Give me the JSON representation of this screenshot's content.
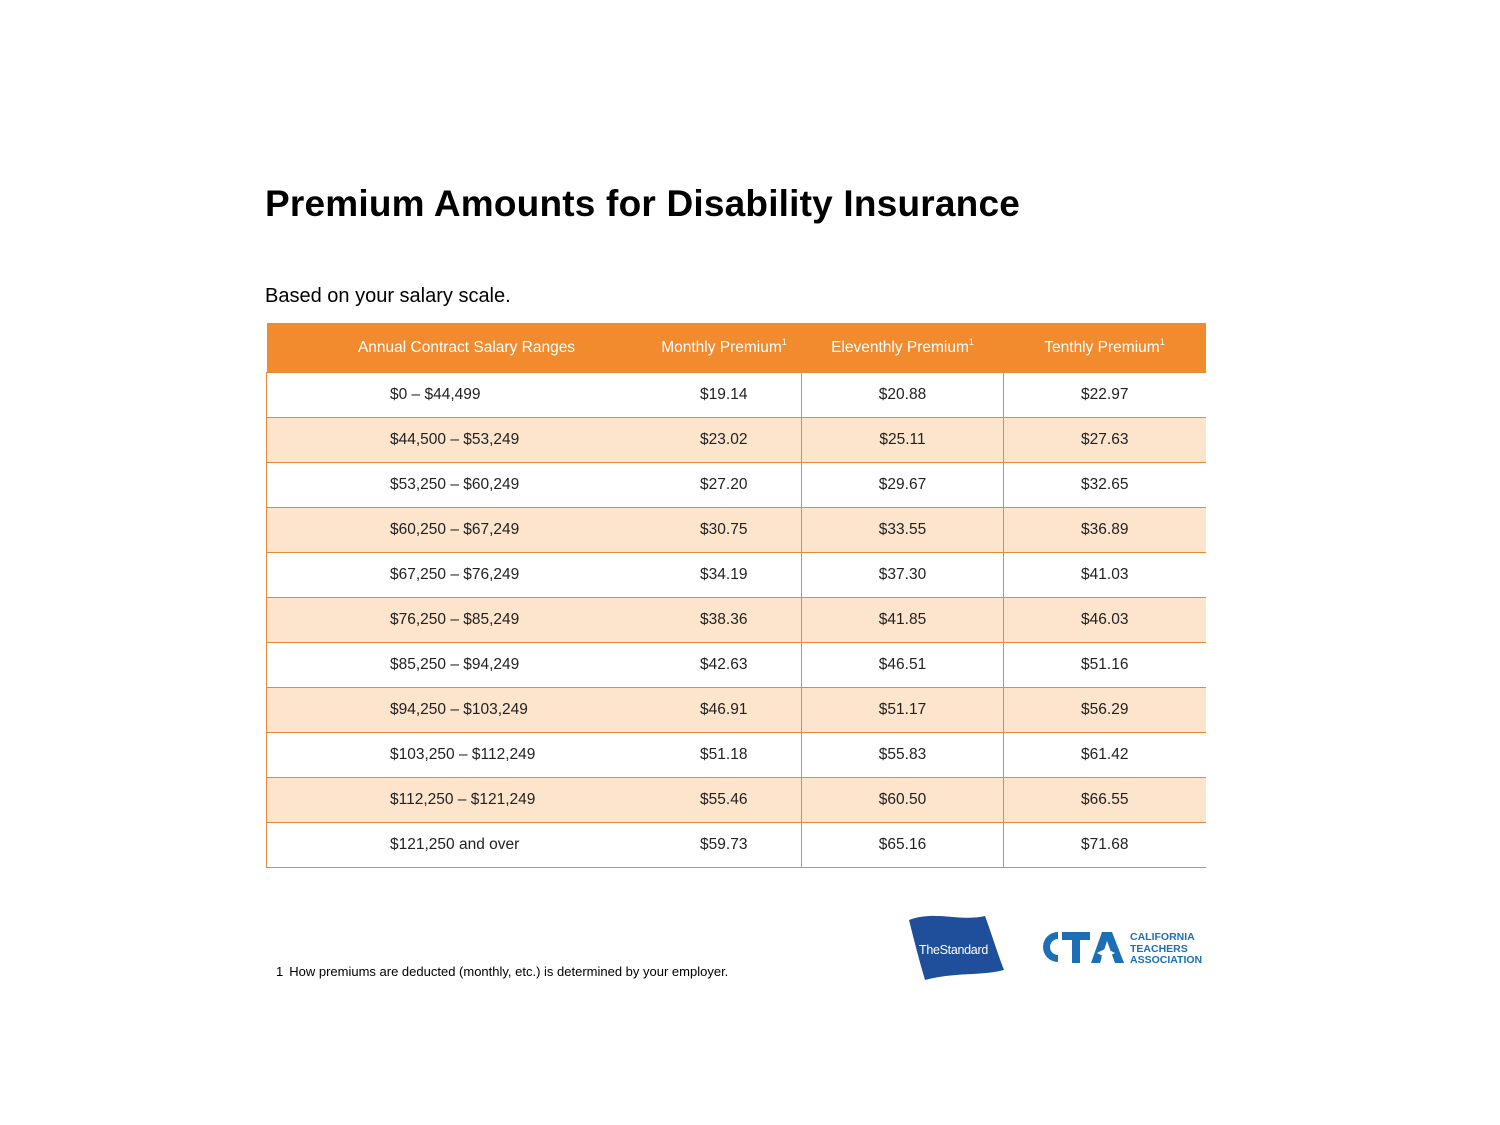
{
  "title": "Premium Amounts for Disability Insurance",
  "subtitle": "Based on your salary scale.",
  "table": {
    "headers": [
      "Annual Contract Salary Ranges",
      "Monthly Premium",
      "Eleventhly Premium",
      "Tenthly Premium"
    ],
    "header_footnote_marker": "1",
    "rows": [
      [
        "$0 – $44,499",
        "$19.14",
        "$20.88",
        "$22.97"
      ],
      [
        "$44,500 – $53,249",
        "$23.02",
        "$25.11",
        "$27.63"
      ],
      [
        "$53,250 – $60,249",
        "$27.20",
        "$29.67",
        "$32.65"
      ],
      [
        "$60,250 – $67,249",
        "$30.75",
        "$33.55",
        "$36.89"
      ],
      [
        "$67,250 – $76,249",
        "$34.19",
        "$37.30",
        "$41.03"
      ],
      [
        "$76,250 – $85,249",
        "$38.36",
        "$41.85",
        "$46.03"
      ],
      [
        "$85,250 – $94,249",
        "$42.63",
        "$46.51",
        "$51.16"
      ],
      [
        "$94,250 – $103,249",
        "$46.91",
        "$51.17",
        "$56.29"
      ],
      [
        "$103,250 – $112,249",
        "$51.18",
        "$55.83",
        "$61.42"
      ],
      [
        "$112,250 – $121,249",
        "$55.46",
        "$60.50",
        "$66.55"
      ],
      [
        "$121,250 and over",
        "$59.73",
        "$65.16",
        "$71.68"
      ]
    ]
  },
  "footnote": {
    "number": "1",
    "text": "How premiums are deducted (monthly, etc.) is determined by your employer."
  },
  "logos": {
    "standard": {
      "text": "TheStandard",
      "color": "#1f4e9a"
    },
    "cta": {
      "letters": "CTA",
      "name_lines": [
        "CALIFORNIA",
        "TEACHERS",
        "ASSOCIATION"
      ],
      "color": "#1d6fb5"
    }
  },
  "colors": {
    "header_orange": "#f28a2e",
    "row_tint": "#fde4cc",
    "border": "#e8893a"
  }
}
